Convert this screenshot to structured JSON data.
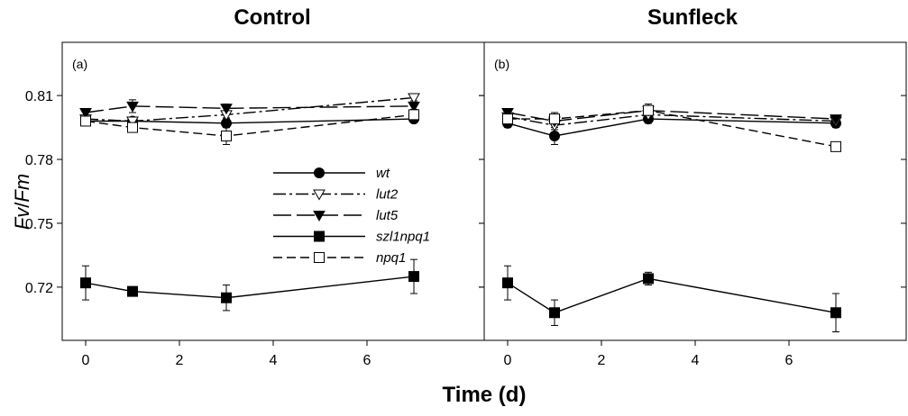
{
  "chart_data": {
    "type": "line",
    "ylabel": "Fv/Fm",
    "xlabel": "Time (d)",
    "ylim": [
      0.695,
      0.835
    ],
    "yticks": [
      0.72,
      0.75,
      0.78,
      0.81
    ],
    "ytick_labels": [
      "0.72",
      "0.75",
      "0.78",
      "0.81"
    ],
    "xlim": [
      -0.5,
      8.5
    ],
    "xticks": [
      0,
      2,
      4,
      6
    ],
    "xtick_labels": [
      "0",
      "2",
      "4",
      "6"
    ],
    "legend": {
      "panel": 0,
      "placement": "center",
      "entries": [
        "wt",
        "lut2",
        "lut5",
        "szl1npq1",
        "npq1"
      ]
    },
    "series_styles": [
      {
        "name": "wt",
        "marker": "circle-filled",
        "line": "solid"
      },
      {
        "name": "lut2",
        "marker": "triangle-down-open",
        "line": "dashdot"
      },
      {
        "name": "lut5",
        "marker": "triangle-down-filled",
        "line": "longdash"
      },
      {
        "name": "szl1npq1",
        "marker": "square-filled",
        "line": "solid"
      },
      {
        "name": "npq1",
        "marker": "square-open",
        "line": "dash"
      }
    ],
    "panels": [
      {
        "title": "Control",
        "label": "(a)",
        "series": [
          {
            "name": "wt",
            "x": [
              0,
              1,
              3,
              7
            ],
            "y": [
              0.798,
              0.798,
              0.797,
              0.799
            ],
            "err": [
              0.002,
              0.0015,
              0.002,
              0.0015
            ]
          },
          {
            "name": "lut2",
            "x": [
              0,
              1,
              3,
              7
            ],
            "y": [
              0.799,
              0.798,
              0.801,
              0.809
            ],
            "err": [
              0.0015,
              0.0015,
              0.0015,
              0.0015
            ]
          },
          {
            "name": "lut5",
            "x": [
              0,
              1,
              3,
              7
            ],
            "y": [
              0.802,
              0.805,
              0.804,
              0.805
            ],
            "err": [
              0.0015,
              0.003,
              0.002,
              0.0015
            ]
          },
          {
            "name": "szl1npq1",
            "x": [
              0,
              1,
              3,
              7
            ],
            "y": [
              0.722,
              0.718,
              0.715,
              0.725
            ],
            "err": [
              0.008,
              0.002,
              0.006,
              0.008
            ]
          },
          {
            "name": "npq1",
            "x": [
              0,
              1,
              3,
              7
            ],
            "y": [
              0.798,
              0.795,
              0.791,
              0.801
            ],
            "err": [
              0.002,
              0.0015,
              0.004,
              0.002
            ]
          }
        ]
      },
      {
        "title": "Sunfleck",
        "label": "(b)",
        "series": [
          {
            "name": "wt",
            "x": [
              0,
              1,
              3,
              7
            ],
            "y": [
              0.797,
              0.791,
              0.799,
              0.797
            ],
            "err": [
              0.002,
              0.004,
              0.002,
              0.002
            ]
          },
          {
            "name": "lut2",
            "x": [
              0,
              1,
              3,
              7
            ],
            "y": [
              0.8,
              0.796,
              0.801,
              0.798
            ],
            "err": [
              0.0015,
              0.002,
              0.002,
              0.0015
            ]
          },
          {
            "name": "lut5",
            "x": [
              0,
              1,
              3,
              7
            ],
            "y": [
              0.802,
              0.798,
              0.803,
              0.799
            ],
            "err": [
              0.0015,
              0.002,
              0.002,
              0.0015
            ]
          },
          {
            "name": "szl1npq1",
            "x": [
              0,
              1,
              3,
              7
            ],
            "y": [
              0.722,
              0.708,
              0.724,
              0.708
            ],
            "err": [
              0.008,
              0.006,
              0.003,
              0.009
            ]
          },
          {
            "name": "npq1",
            "x": [
              0,
              1,
              3,
              7
            ],
            "y": [
              0.799,
              0.799,
              0.803,
              0.786
            ],
            "err": [
              0.002,
              0.003,
              0.003,
              0.0015
            ]
          }
        ]
      }
    ]
  }
}
